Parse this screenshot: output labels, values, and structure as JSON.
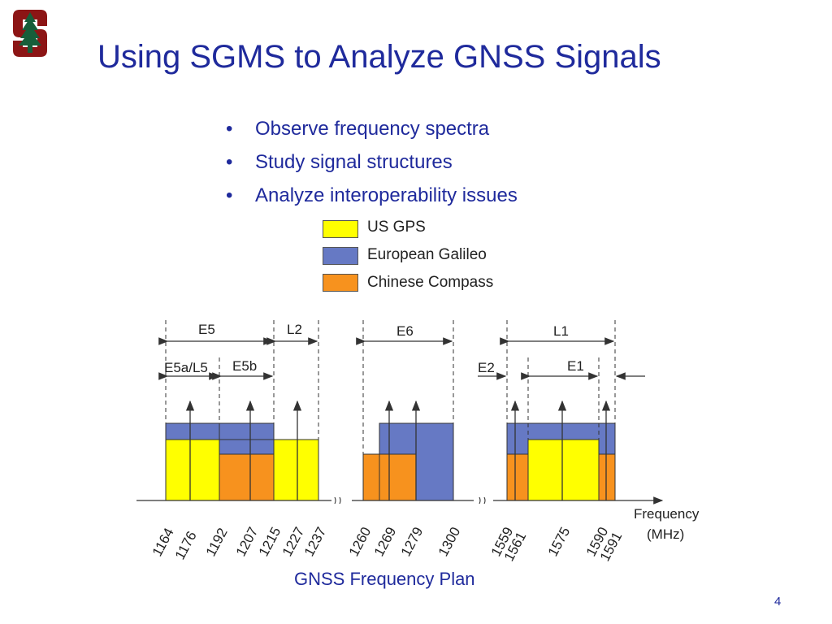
{
  "slide": {
    "title": "Using SGMS to Analyze GNSS Signals",
    "bullets": [
      "Observe frequency spectra",
      "Study signal structures",
      "Analyze interoperability issues"
    ],
    "caption": "GNSS Frequency Plan",
    "page_number": "4"
  },
  "logo": {
    "name": "stanford-tree-logo",
    "colors": {
      "block": "#8c1515",
      "tree": "#175e3a"
    }
  },
  "legend": [
    {
      "label": "US GPS",
      "color": "#ffff00"
    },
    {
      "label": "European Galileo",
      "color": "#6679c4"
    },
    {
      "label": "Chinese Compass",
      "color": "#f7921e"
    }
  ],
  "diagram": {
    "axis_label_line1": "Frequency",
    "axis_label_line2": "(MHz)",
    "band_labels": {
      "E5": "E5",
      "L2": "L2",
      "E6": "E6",
      "L1": "L1",
      "E5a_L5": "E5a/L5",
      "E5b": "E5b",
      "E2": "E2",
      "E1": "E1"
    },
    "frequencies_mhz": [
      "1164",
      "1176",
      "1192",
      "1207",
      "1215",
      "1227",
      "1237",
      "1260",
      "1269",
      "1279",
      "1300",
      "1559",
      "1561",
      "1575",
      "1590",
      "1591"
    ],
    "carrier_frequencies_mhz": [
      "1176",
      "1207",
      "1227",
      "1269",
      "1279",
      "1561",
      "1575",
      "1590"
    ],
    "colors": {
      "gps": "#ffff00",
      "galileo": "#6679c4",
      "compass": "#f7921e",
      "line": "#333333"
    }
  }
}
